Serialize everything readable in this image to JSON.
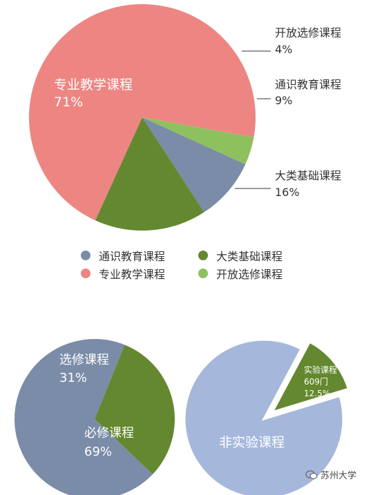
{
  "chart_data": [
    {
      "type": "pie",
      "slices": [
        {
          "label": "专业教学课程",
          "percent_text": "71%",
          "value": 71,
          "color": "#ED8683"
        },
        {
          "label": "开放选修课程",
          "percent_text": "4%",
          "value": 4,
          "color": "#8EC15E"
        },
        {
          "label": "通识教育课程",
          "percent_text": "9%",
          "value": 9,
          "color": "#7A8CA8"
        },
        {
          "label": "大类基础课程",
          "percent_text": "16%",
          "value": 16,
          "color": "#64882F"
        }
      ],
      "legend": [
        {
          "label": "通识教育课程",
          "color": "#7A8CA8"
        },
        {
          "label": "大类基础课程",
          "color": "#64882F"
        },
        {
          "label": "专业教学课程",
          "color": "#ED8683"
        },
        {
          "label": "开放选修课程",
          "color": "#8EC15E"
        }
      ],
      "legend_position": "bottom"
    },
    {
      "type": "pie",
      "slices": [
        {
          "label": "选修课程",
          "percent_text": "31%",
          "value": 31,
          "color": "#64882F"
        },
        {
          "label": "必修课程",
          "percent_text": "69%",
          "value": 69,
          "color": "#7A8CA8"
        }
      ]
    },
    {
      "type": "pie",
      "exploded": "实验课程",
      "slices": [
        {
          "label": "实验课程",
          "count_text": "609门",
          "percent_text": "12.5%",
          "value": 12.5,
          "color": "#64882F"
        },
        {
          "label": "非实验课程",
          "value": 87.5,
          "color": "#A5B8DB"
        }
      ]
    }
  ],
  "watermark": {
    "text": "苏州大学"
  }
}
